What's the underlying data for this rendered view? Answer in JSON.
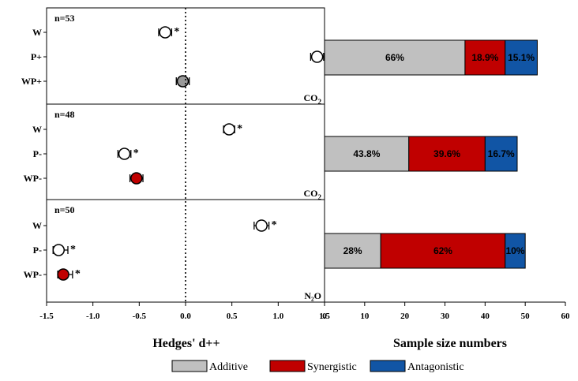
{
  "chart_data": [
    {
      "type": "scatter",
      "xlabel": "Hedges' d++",
      "xlim": [
        -1.5,
        1.5
      ],
      "xticks": [
        -1.5,
        -1.0,
        -0.5,
        0.0,
        0.5,
        1.0,
        1.5
      ],
      "xtick_labels": [
        "-1.5",
        "-1.0",
        "-0.5",
        "0.0",
        "0.5",
        "1.0",
        "1.5"
      ],
      "reference_line": 0.0,
      "panels": [
        {
          "n_label": "n=53",
          "gas": "CO2",
          "gas_label_main": "CO",
          "gas_label_sub": "2",
          "rows": [
            {
              "label": "W",
              "value": -0.22,
              "ci_low": -0.29,
              "ci_high": -0.15,
              "fill": "white",
              "sig": "*"
            },
            {
              "label": "P+",
              "value": 1.42,
              "ci_low": 1.35,
              "ci_high": 1.49,
              "fill": "white",
              "sig": "*"
            },
            {
              "label": "WP+",
              "value": -0.03,
              "ci_low": -0.1,
              "ci_high": 0.04,
              "fill": "#999999",
              "sig": ""
            }
          ]
        },
        {
          "n_label": "n=48",
          "gas": "CO2",
          "gas_label_main": "CO",
          "gas_label_sub": "2",
          "rows": [
            {
              "label": "W",
              "value": 0.47,
              "ci_low": 0.41,
              "ci_high": 0.53,
              "fill": "white",
              "sig": "*"
            },
            {
              "label": "P-",
              "value": -0.66,
              "ci_low": -0.73,
              "ci_high": -0.59,
              "fill": "white",
              "sig": "*"
            },
            {
              "label": "WP-",
              "value": -0.53,
              "ci_low": -0.6,
              "ci_high": -0.46,
              "fill": "#c00000",
              "sig": ""
            }
          ]
        },
        {
          "n_label": "n=50",
          "gas": "N2O",
          "gas_label_main": "N₂O",
          "gas_label_sub": "",
          "rows": [
            {
              "label": "W",
              "value": 0.82,
              "ci_low": 0.74,
              "ci_high": 0.9,
              "fill": "white",
              "sig": "*"
            },
            {
              "label": "P-",
              "value": -1.37,
              "ci_low": -1.43,
              "ci_high": -1.27,
              "fill": "white",
              "sig": "*"
            },
            {
              "label": "WP-",
              "value": -1.32,
              "ci_low": -1.38,
              "ci_high": -1.22,
              "fill": "#c00000",
              "sig": "*"
            }
          ]
        }
      ]
    },
    {
      "type": "bar",
      "orientation": "horizontal",
      "stacked": true,
      "xlabel": "Sample size numbers",
      "xlim": [
        0,
        60
      ],
      "xticks": [
        0,
        10,
        20,
        30,
        40,
        50,
        60
      ],
      "xtick_labels": [
        "0",
        "10",
        "20",
        "30",
        "40",
        "50",
        "60"
      ],
      "series": [
        {
          "name": "Additive",
          "color": "#c0c0c0",
          "values": [
            35,
            21,
            14
          ],
          "labels": [
            "66%",
            "43.8%",
            "28%"
          ]
        },
        {
          "name": "Synergistic",
          "color": "#c00000",
          "values": [
            10,
            19,
            31
          ],
          "labels": [
            "18.9%",
            "39.6%",
            "62%"
          ]
        },
        {
          "name": "Antagonistic",
          "color": "#1155a5",
          "values": [
            8,
            8,
            5
          ],
          "labels": [
            "15.1%",
            "16.7%",
            "10%"
          ]
        }
      ],
      "legend": {
        "position": "bottom-center",
        "items": [
          "Additive",
          "Synergistic",
          "Antagonistic"
        ]
      }
    }
  ]
}
